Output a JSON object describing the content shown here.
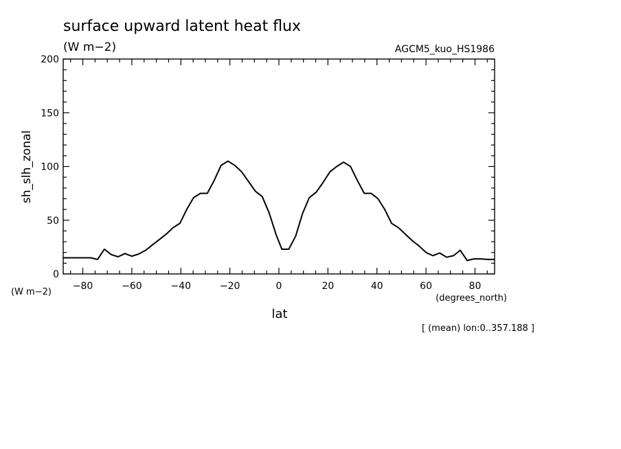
{
  "chart_data": {
    "type": "line",
    "title": "surface upward latent heat flux",
    "units": "(W m−2)",
    "dataset": "AGCM5_kuo_HS1986",
    "ylabel": "sh_slh_zonal",
    "yunits": "(W m−2)",
    "xlabel": "lat",
    "xunits": "(degrees_north)",
    "footnote": "[ (mean) lon:0..357.188 ]",
    "xlim": [
      -88,
      88
    ],
    "ylim": [
      0,
      200
    ],
    "xticks": [
      -80,
      -60,
      -40,
      -20,
      0,
      20,
      40,
      60,
      80
    ],
    "yticks": [
      0,
      50,
      100,
      150,
      200
    ],
    "xtick_labels": [
      "−80",
      "−60",
      "−40",
      "−20",
      "0",
      "20",
      "40",
      "60",
      "80"
    ],
    "ytick_labels": [
      "0",
      "50",
      "100",
      "150",
      "200"
    ],
    "grid": false,
    "series": [
      {
        "color": "#000000",
        "x": [
          -88,
          -85.2,
          -82.4,
          -79.6,
          -76.8,
          -74.0,
          -71.2,
          -68.4,
          -65.6,
          -62.8,
          -60.0,
          -57.2,
          -54.4,
          -51.6,
          -48.8,
          -46.0,
          -43.2,
          -40.4,
          -37.6,
          -34.8,
          -32.0,
          -29.2,
          -26.4,
          -23.6,
          -20.8,
          -18.0,
          -15.2,
          -12.4,
          -9.6,
          -6.8,
          -4.0,
          -1.2,
          1.2,
          4.0,
          6.8,
          9.6,
          12.4,
          15.2,
          18.0,
          20.8,
          23.6,
          26.4,
          29.2,
          32.0,
          34.8,
          37.6,
          40.4,
          43.2,
          46.0,
          48.8,
          51.6,
          54.4,
          57.2,
          60.0,
          62.8,
          65.6,
          68.4,
          71.2,
          74.0,
          76.8,
          79.6,
          82.4,
          85.2,
          88
        ],
        "y": [
          15,
          15,
          15,
          15,
          15,
          13.5,
          23,
          18,
          16,
          19,
          16.5,
          18.5,
          22,
          27,
          32,
          37,
          43,
          47,
          60,
          71,
          75,
          75,
          87,
          101,
          105,
          101,
          95,
          86,
          77,
          72,
          57,
          37,
          23,
          23,
          35,
          56,
          71,
          76,
          85,
          95,
          100,
          104,
          100,
          87,
          75,
          75,
          70,
          60,
          47,
          43,
          37,
          31,
          26,
          20,
          17,
          19.5,
          15.5,
          17,
          22,
          12.5,
          14,
          14,
          13.5,
          13.5
        ]
      }
    ]
  }
}
